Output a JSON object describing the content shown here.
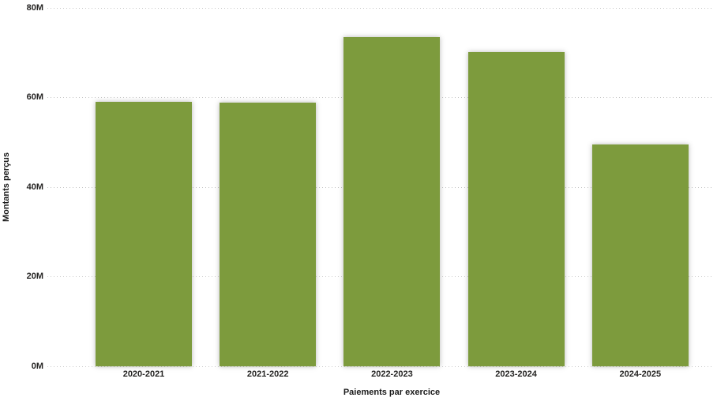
{
  "chart_data": {
    "type": "bar",
    "title": "",
    "categories": [
      "2020-2021",
      "2021-2022",
      "2022-2023",
      "2023-2024",
      "2024-2025"
    ],
    "values": [
      59.0,
      58.8,
      73.5,
      70.1,
      49.6
    ],
    "xlabel": "Paiements par exercice",
    "ylabel": "Montants perçus",
    "ylim": [
      0,
      80
    ],
    "yticks": [
      0,
      20,
      40,
      60,
      80
    ],
    "ytick_labels": [
      "0M",
      "20M",
      "40M",
      "60M",
      "80M"
    ],
    "grid": "horizontal-dotted",
    "legend": "none",
    "bar_color": "#7D9B3D",
    "gridline_color": "#C6C6C6",
    "text_color": "#252423",
    "background_color": "#FFFFFF"
  }
}
